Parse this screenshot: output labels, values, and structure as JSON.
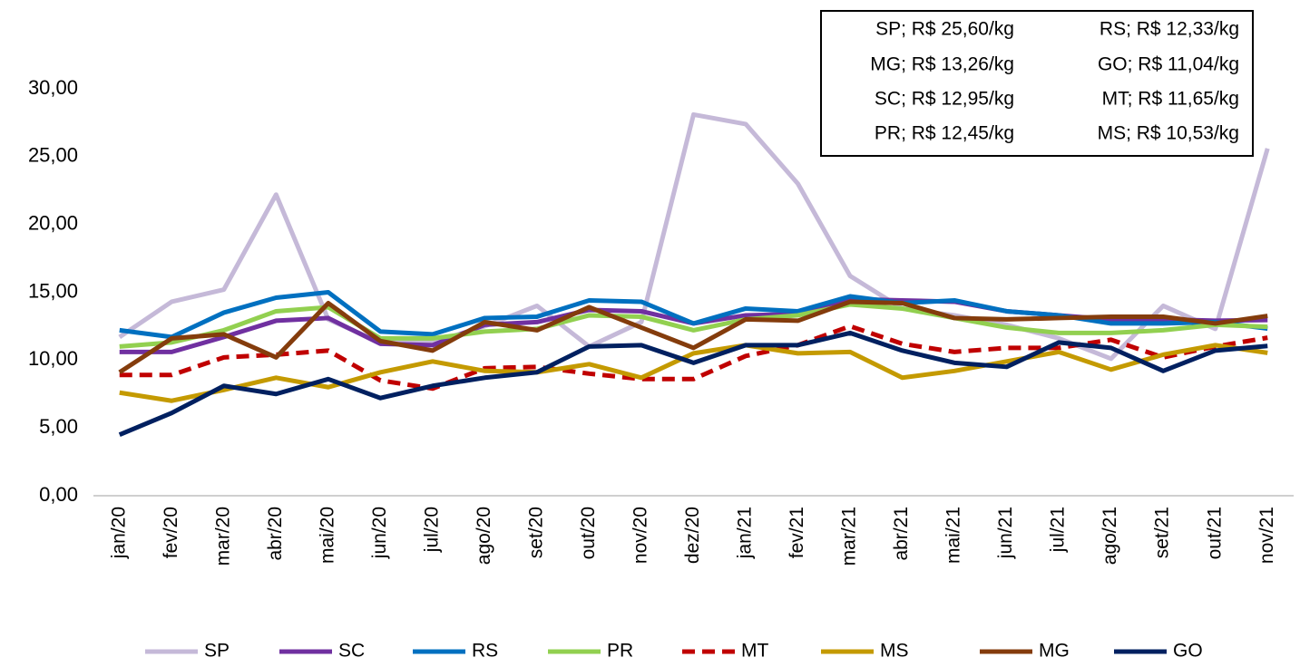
{
  "chart_data": {
    "type": "line",
    "categories": [
      "jan/20",
      "fev/20",
      "mar/20",
      "abr/20",
      "mai/20",
      "jun/20",
      "jul/20",
      "ago/20",
      "set/20",
      "out/20",
      "nov/20",
      "dez/20",
      "jan/21",
      "fev/21",
      "mar/21",
      "abr/21",
      "mai/21",
      "jun/21",
      "jul/21",
      "ago/21",
      "set/21",
      "out/21",
      "nov/21"
    ],
    "ylim": [
      0,
      30
    ],
    "yticks": [
      {
        "value": 0,
        "label": "0,00"
      },
      {
        "value": 5,
        "label": "5,00"
      },
      {
        "value": 10,
        "label": "10,00"
      },
      {
        "value": 15,
        "label": "15,00"
      },
      {
        "value": 20,
        "label": "20,00"
      },
      {
        "value": 25,
        "label": "25,00"
      },
      {
        "value": 30,
        "label": "30,00"
      }
    ],
    "grid": false,
    "legend": "bottom",
    "annotations": [
      [
        "SP; R$ 25,60/kg",
        "RS; R$ 12,33/kg"
      ],
      [
        "MG; R$ 13,26/kg",
        "GO; R$ 11,04/kg"
      ],
      [
        "SC; R$ 12,95/kg",
        "MT; R$ 11,65/kg"
      ],
      [
        "PR; R$ 12,45/kg",
        "MS; R$ 10,53/kg"
      ]
    ],
    "series": [
      {
        "name": "SP",
        "color": "#c5b9d8",
        "dashed": false,
        "values": [
          11.7,
          14.3,
          15.2,
          22.2,
          13.0,
          11.3,
          11.3,
          12.5,
          14.0,
          11.0,
          12.8,
          28.1,
          27.4,
          23.0,
          16.2,
          13.8,
          13.3,
          12.6,
          11.6,
          10.1,
          14.0,
          12.3,
          25.6
        ]
      },
      {
        "name": "SC",
        "color": "#7030a0",
        "dashed": false,
        "values": [
          10.6,
          10.6,
          11.7,
          12.9,
          13.1,
          11.2,
          11.1,
          12.6,
          12.8,
          13.7,
          13.6,
          12.7,
          13.3,
          13.4,
          14.5,
          14.4,
          14.3,
          13.6,
          13.3,
          13.0,
          13.0,
          12.9,
          12.95
        ]
      },
      {
        "name": "RS",
        "color": "#0070c0",
        "dashed": false,
        "values": [
          12.2,
          11.7,
          13.5,
          14.6,
          15.0,
          12.1,
          11.9,
          13.1,
          13.2,
          14.4,
          14.3,
          12.7,
          13.8,
          13.6,
          14.7,
          14.2,
          14.4,
          13.6,
          13.3,
          12.7,
          12.7,
          12.8,
          12.33
        ]
      },
      {
        "name": "PR",
        "color": "#92d050",
        "dashed": false,
        "values": [
          11.0,
          11.3,
          12.2,
          13.6,
          13.9,
          11.6,
          11.6,
          12.1,
          12.3,
          13.3,
          13.2,
          12.2,
          13.0,
          13.3,
          14.1,
          13.8,
          13.1,
          12.4,
          12.0,
          12.0,
          12.2,
          12.6,
          12.45
        ]
      },
      {
        "name": "MT",
        "color": "#c00000",
        "dashed": true,
        "values": [
          8.9,
          8.9,
          10.2,
          10.4,
          10.7,
          8.5,
          7.9,
          9.4,
          9.5,
          9.0,
          8.6,
          8.6,
          10.3,
          11.1,
          12.5,
          11.2,
          10.6,
          10.9,
          10.9,
          11.5,
          10.2,
          11.0,
          11.65
        ]
      },
      {
        "name": "MS",
        "color": "#c49a00",
        "dashed": false,
        "values": [
          7.6,
          7.0,
          7.8,
          8.7,
          8.0,
          9.1,
          9.9,
          9.2,
          9.1,
          9.7,
          8.7,
          10.5,
          11.1,
          10.5,
          10.6,
          8.7,
          9.2,
          9.9,
          10.6,
          9.3,
          10.4,
          11.1,
          10.53
        ]
      },
      {
        "name": "MG",
        "color": "#843c0c",
        "dashed": false,
        "values": [
          9.1,
          11.6,
          11.9,
          10.2,
          14.2,
          11.4,
          10.7,
          12.8,
          12.2,
          13.9,
          12.4,
          10.9,
          13.0,
          12.9,
          14.3,
          14.2,
          13.1,
          13.0,
          13.1,
          13.2,
          13.2,
          12.7,
          13.26
        ]
      },
      {
        "name": "GO",
        "color": "#002060",
        "dashed": false,
        "values": [
          4.5,
          6.1,
          8.1,
          7.5,
          8.6,
          7.2,
          8.1,
          8.7,
          9.1,
          11.0,
          11.1,
          9.8,
          11.1,
          11.1,
          12.0,
          10.7,
          9.8,
          9.5,
          11.3,
          10.9,
          9.2,
          10.7,
          11.04
        ]
      }
    ]
  }
}
